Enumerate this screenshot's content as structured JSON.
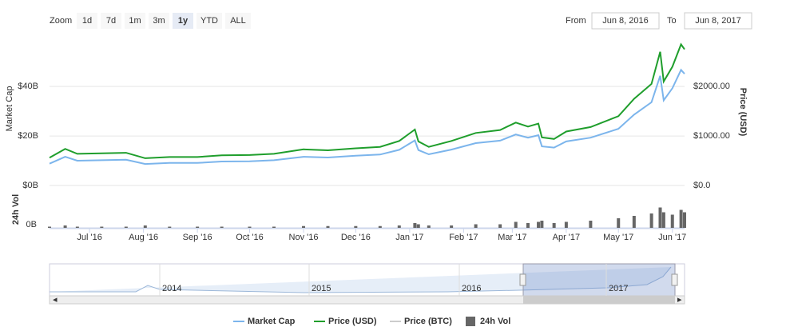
{
  "toolbar": {
    "zoom_label": "Zoom",
    "buttons": [
      "1d",
      "7d",
      "1m",
      "3m",
      "1y",
      "YTD",
      "ALL"
    ],
    "selected": "1y",
    "from_label": "From",
    "from": "Jun 8, 2016",
    "to_label": "To",
    "to": "Jun 8, 2017"
  },
  "chart_data": {
    "type": "line",
    "x": [
      "2016-06-08",
      "2016-06-17",
      "2016-06-24",
      "2016-07-08",
      "2016-07-22",
      "2016-08-02",
      "2016-08-16",
      "2016-09-01",
      "2016-09-15",
      "2016-10-01",
      "2016-10-15",
      "2016-11-01",
      "2016-11-15",
      "2016-12-01",
      "2016-12-15",
      "2016-12-26",
      "2017-01-04",
      "2017-01-06",
      "2017-01-12",
      "2017-01-25",
      "2017-02-08",
      "2017-02-22",
      "2017-03-03",
      "2017-03-10",
      "2017-03-16",
      "2017-03-18",
      "2017-03-25",
      "2017-04-01",
      "2017-04-15",
      "2017-05-01",
      "2017-05-10",
      "2017-05-20",
      "2017-05-25",
      "2017-05-27",
      "2017-06-01",
      "2017-06-06",
      "2017-06-08"
    ],
    "xlim": [
      "2016-06-08",
      "2017-06-08"
    ],
    "xticks": [
      {
        "value": "2016-07-01",
        "label": "Jul '16"
      },
      {
        "value": "2016-08-01",
        "label": "Aug '16"
      },
      {
        "value": "2016-09-01",
        "label": "Sep '16"
      },
      {
        "value": "2016-10-01",
        "label": "Oct '16"
      },
      {
        "value": "2016-11-01",
        "label": "Nov '16"
      },
      {
        "value": "2016-12-01",
        "label": "Dec '16"
      },
      {
        "value": "2017-01-01",
        "label": "Jan '17"
      },
      {
        "value": "2017-02-01",
        "label": "Feb '17"
      },
      {
        "value": "2017-03-01",
        "label": "Mar '17"
      },
      {
        "value": "2017-04-01",
        "label": "Apr '17"
      },
      {
        "value": "2017-05-01",
        "label": "May '17"
      },
      {
        "value": "2017-06-01",
        "label": "Jun '17"
      }
    ],
    "ylabel": "Market Cap",
    "ylim": [
      0,
      62
    ],
    "yticks": [
      {
        "value": 0,
        "label": "$0B"
      },
      {
        "value": 20,
        "label": "$20B"
      },
      {
        "value": 40,
        "label": "$40B"
      }
    ],
    "y2label": "Price (USD)",
    "y2lim": [
      0,
      3100
    ],
    "y2ticks": [
      {
        "value": 0,
        "label": "$0.0"
      },
      {
        "value": 1000,
        "label": "$1000.00"
      },
      {
        "value": 2000,
        "label": "$2000.00"
      }
    ],
    "y3label": "24h Vol",
    "y3lim": [
      0,
      3
    ],
    "y3ticks": [
      {
        "value": 0,
        "label": "0B"
      }
    ],
    "grid": true,
    "series": [
      {
        "name": "Market Cap",
        "color": "#7cb5ec",
        "axis": "y",
        "values": [
          8.8,
          11.6,
          10.0,
          10.2,
          10.4,
          8.7,
          9.1,
          9.1,
          9.7,
          9.8,
          10.2,
          11.6,
          11.3,
          12.0,
          12.5,
          14.4,
          18.2,
          14.3,
          12.6,
          14.5,
          17.1,
          18.1,
          20.6,
          19.3,
          20.3,
          15.8,
          15.3,
          17.8,
          19.3,
          22.9,
          28.6,
          33.6,
          44.3,
          34.4,
          39.3,
          46.7,
          45.1
        ]
      },
      {
        "name": "Price (USD)",
        "color": "#1f9e2c",
        "axis": "y2",
        "values": [
          560,
          740,
          640,
          650,
          660,
          550,
          575,
          575,
          610,
          615,
          640,
          730,
          710,
          750,
          780,
          900,
          1130,
          890,
          780,
          900,
          1060,
          1120,
          1270,
          1190,
          1250,
          970,
          940,
          1090,
          1180,
          1400,
          1750,
          2050,
          2700,
          2100,
          2400,
          2850,
          2750
        ]
      },
      {
        "name": "Price (BTC)",
        "color": "#cccccc",
        "visible": false
      },
      {
        "name": "24h Vol",
        "color": "#666666",
        "axis": "y3",
        "kind": "bar",
        "values": [
          0.1,
          0.2,
          0.1,
          0.1,
          0.1,
          0.2,
          0.1,
          0.1,
          0.1,
          0.1,
          0.1,
          0.15,
          0.15,
          0.15,
          0.15,
          0.2,
          0.4,
          0.3,
          0.2,
          0.2,
          0.3,
          0.3,
          0.5,
          0.4,
          0.5,
          0.6,
          0.4,
          0.5,
          0.6,
          0.8,
          1.0,
          1.2,
          1.7,
          1.3,
          1.1,
          1.5,
          1.3
        ]
      }
    ],
    "navigator_labels": [
      "2014",
      "2015",
      "2016",
      "2017"
    ]
  }
}
